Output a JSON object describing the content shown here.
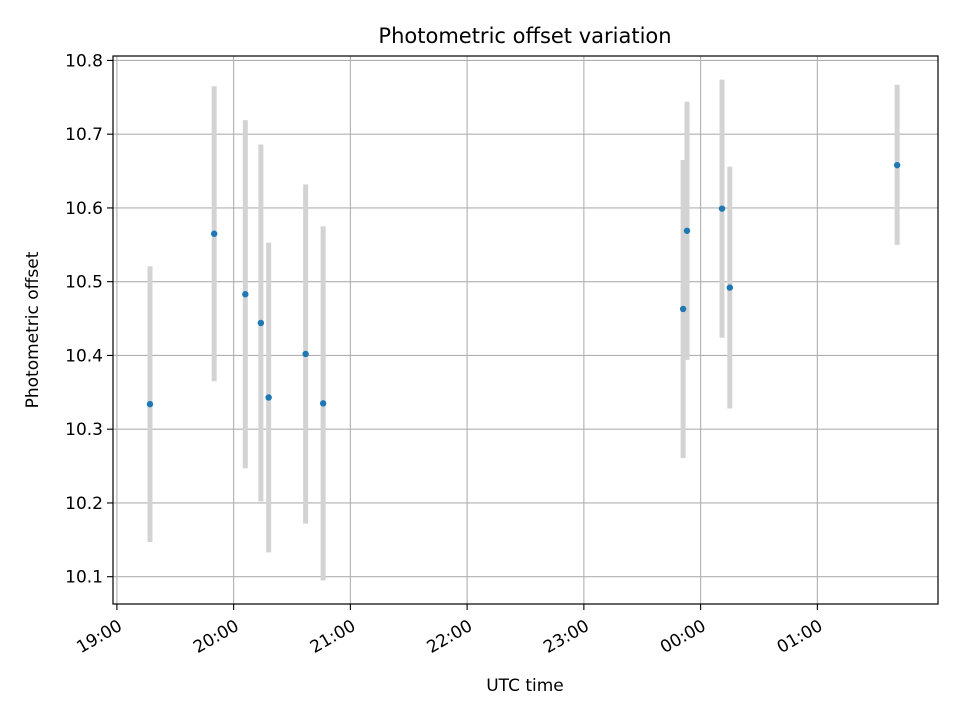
{
  "chart_data": {
    "type": "scatter",
    "title": "Photometric offset variation",
    "xlabel": "UTC time",
    "ylabel": "Photometric offset",
    "grid": true,
    "x_unit": "UTC hour-of-night (hours after 19:00 continue past midnight)",
    "x_ticks": [
      {
        "label": "19:00",
        "value": "19:00"
      },
      {
        "label": "20:00",
        "value": "20:00"
      },
      {
        "label": "21:00",
        "value": "21:00"
      },
      {
        "label": "22:00",
        "value": "22:00"
      },
      {
        "label": "23:00",
        "value": "23:00"
      },
      {
        "label": "00:00",
        "value": "00:00"
      },
      {
        "label": "01:00",
        "value": "01:00"
      }
    ],
    "xlim": [
      "18:58",
      "02:02"
    ],
    "ylim": [
      10.063,
      10.806
    ],
    "y_ticks": [
      10.1,
      10.2,
      10.3,
      10.4,
      10.5,
      10.6,
      10.7,
      10.8
    ],
    "colors": {
      "point": "#1f77b4",
      "errorbar": "#d3d3d3",
      "grid": "#b0b0b0"
    },
    "points": [
      {
        "time": "19:17",
        "y": 10.334,
        "ymin": 10.147,
        "ymax": 10.521
      },
      {
        "time": "19:50",
        "y": 10.565,
        "ymin": 10.365,
        "ymax": 10.765
      },
      {
        "time": "20:06",
        "y": 10.483,
        "ymin": 10.247,
        "ymax": 10.719
      },
      {
        "time": "20:14",
        "y": 10.444,
        "ymin": 10.202,
        "ymax": 10.686
      },
      {
        "time": "20:18",
        "y": 10.343,
        "ymin": 10.133,
        "ymax": 10.553
      },
      {
        "time": "20:37",
        "y": 10.402,
        "ymin": 10.172,
        "ymax": 10.632
      },
      {
        "time": "20:46",
        "y": 10.335,
        "ymin": 10.095,
        "ymax": 10.575
      },
      {
        "time": "23:51",
        "y": 10.463,
        "ymin": 10.261,
        "ymax": 10.665
      },
      {
        "time": "23:53",
        "y": 10.569,
        "ymin": 10.394,
        "ymax": 10.744
      },
      {
        "time": "00:11",
        "y": 10.599,
        "ymin": 10.424,
        "ymax": 10.774
      },
      {
        "time": "00:15",
        "y": 10.492,
        "ymin": 10.328,
        "ymax": 10.656
      },
      {
        "time": "01:41",
        "y": 10.658,
        "ymin": 10.55,
        "ymax": 10.767
      }
    ]
  }
}
